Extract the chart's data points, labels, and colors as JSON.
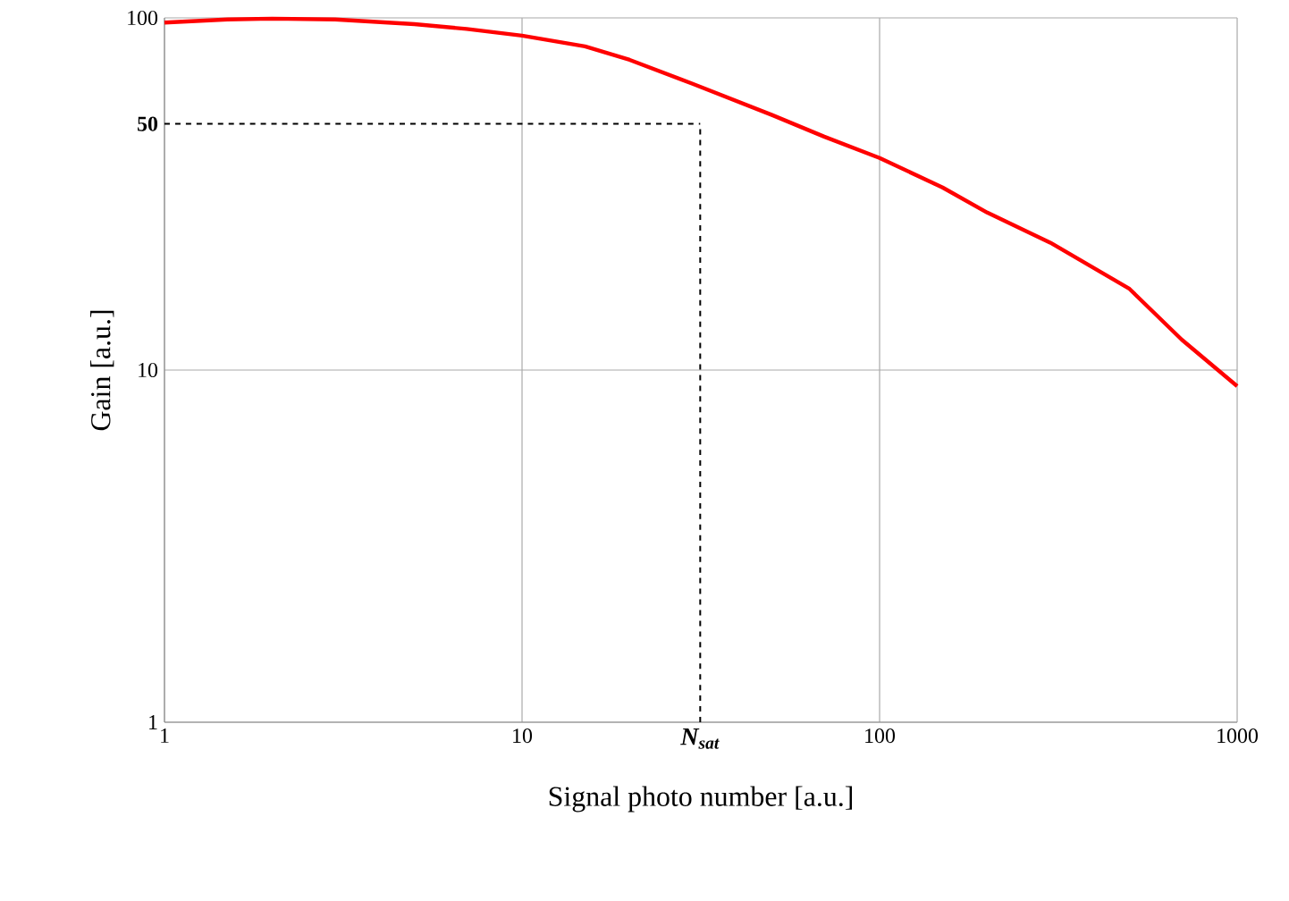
{
  "chart_data": {
    "type": "line",
    "xlabel": "Signal photo number [a.u.]",
    "ylabel": "Gain [a.u.]",
    "log": "xy",
    "xlim": [
      1,
      1000
    ],
    "ylim": [
      1,
      100
    ],
    "xticks": [
      1,
      10,
      100,
      1000
    ],
    "yticks": [
      1,
      10,
      100
    ],
    "grid": true,
    "marker": "none",
    "line_style": "solid",
    "series": [
      {
        "color": "#ff0000",
        "x": [
          1,
          1.5,
          2,
          3,
          5,
          7,
          10,
          15,
          20,
          30,
          50,
          70,
          100,
          150,
          200,
          300,
          500,
          700,
          1000
        ],
        "values": [
          97,
          99,
          99.5,
          99,
          96,
          93,
          89,
          83,
          76,
          65,
          53,
          46,
          40,
          33,
          28,
          23,
          17,
          12.2,
          9
        ]
      }
    ],
    "ref_lines": [
      {
        "axis": "y",
        "value": 50,
        "label": "**50**",
        "color": "#000000",
        "line_style": "dashed"
      },
      {
        "axis": "x",
        "value": 31.5,
        "label": "*N*$_{sat}$",
        "color": "#000000",
        "line_style": "dashed"
      }
    ]
  }
}
